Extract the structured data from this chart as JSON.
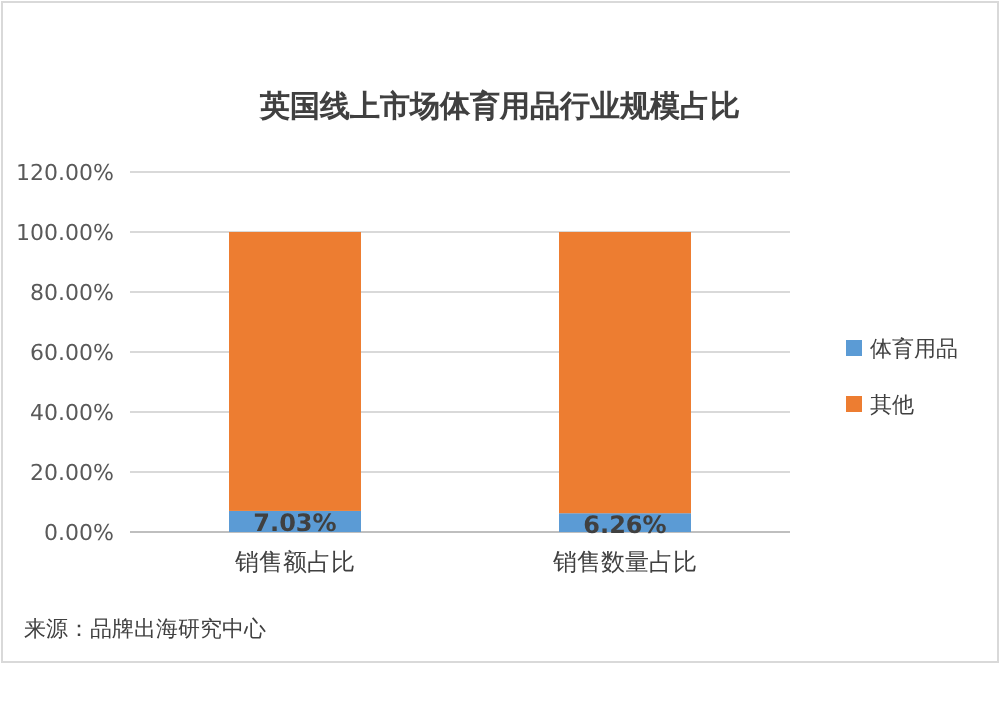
{
  "chart_data": {
    "type": "bar",
    "title": "英国线上市场体育用品行业规模占比",
    "categories": [
      "销售额占比",
      "销售数量占比"
    ],
    "stacked": true,
    "series": [
      {
        "name": "体育用品",
        "color": "#5b9bd5",
        "values": [
          7.03,
          6.26
        ],
        "value_labels": [
          "7.03%",
          "6.26%"
        ]
      },
      {
        "name": "其他",
        "color": "#ed7d31",
        "values": [
          92.97,
          93.74
        ]
      }
    ],
    "ylim": [
      0,
      120
    ],
    "yticks": [
      {
        "value": 0,
        "label": "0.00%"
      },
      {
        "value": 20,
        "label": "20.00%"
      },
      {
        "value": 40,
        "label": "40.00%"
      },
      {
        "value": 60,
        "label": "60.00%"
      },
      {
        "value": 80,
        "label": "80.00%"
      },
      {
        "value": 100,
        "label": "100.00%"
      },
      {
        "value": 120,
        "label": "120.00%"
      }
    ],
    "grid": "y",
    "legend": "right",
    "annotations": [
      "来源：品牌出海研究中心"
    ]
  }
}
